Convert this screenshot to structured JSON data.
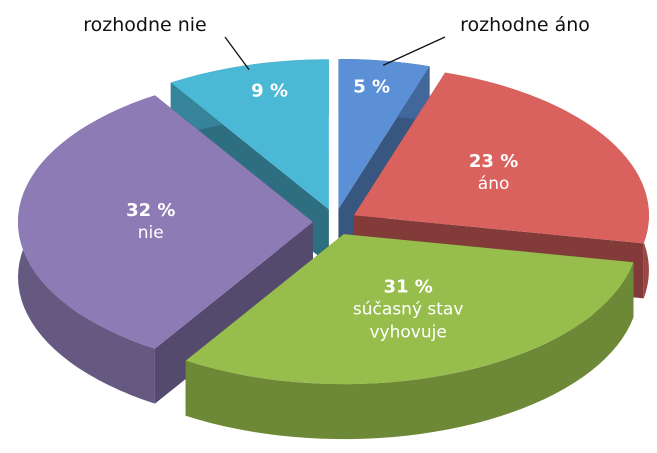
{
  "chart_data": {
    "type": "pie3d",
    "categories": [
      "rozhodne áno",
      "áno",
      "súčasný stav vyhovuje",
      "nie",
      "rozhodne nie"
    ],
    "values": [
      5,
      23,
      31,
      32,
      9
    ],
    "value_labels": [
      "5 %",
      "23 %",
      "31 %",
      "32 %",
      "9 %"
    ],
    "colors": [
      "#5b8fd6",
      "#d9625f",
      "#97bd4d",
      "#8c7bb5",
      "#4bb8d6"
    ]
  }
}
